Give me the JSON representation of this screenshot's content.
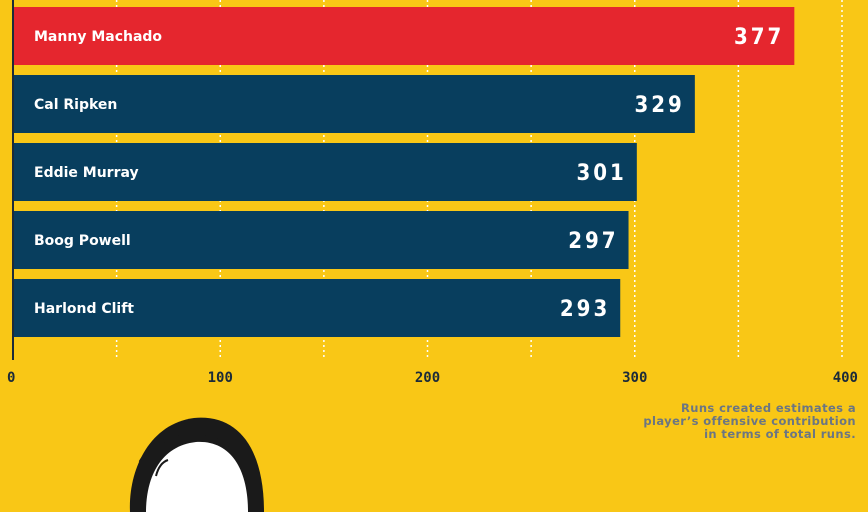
{
  "chart_data": {
    "type": "bar",
    "orientation": "horizontal",
    "categories": [
      "Manny Machado",
      "Cal Ripken",
      "Eddie Murray",
      "Boog Powell",
      "Harlond Clift"
    ],
    "values": [
      377,
      329,
      301,
      297,
      293
    ],
    "value_labels": [
      "377",
      "329",
      "301",
      "297",
      "293"
    ],
    "xlim": [
      0,
      400
    ],
    "x_ticks": [
      "0",
      "100",
      "200",
      "300",
      "400"
    ],
    "grid": "vertical dotted lines every 50",
    "colors": {
      "highlight": "#E5262E",
      "default": "#083E5E",
      "background": "#F9C716",
      "axis": "#1c2b39"
    },
    "highlight_index": 0
  },
  "footnote": {
    "line1": "Runs created estimates a",
    "line2": "player’s offensive contribution",
    "line3": "in terms of total runs."
  },
  "portrait_icon": "player-head-illustration"
}
